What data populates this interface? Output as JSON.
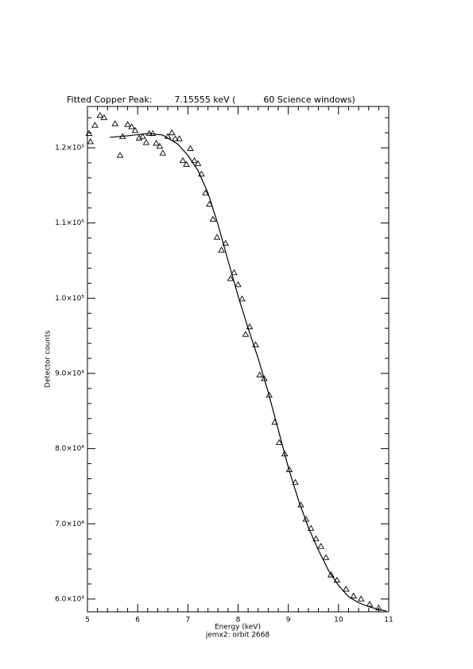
{
  "chart_data": {
    "type": "scatter",
    "title": "Fitted Copper Peak:        7.15555 keV (          60 Science windows)",
    "x_label": "Energy (keV)",
    "subtitle": "jemx2: orbit 2668",
    "y_label": "Detector counts",
    "xlim": [
      5,
      11
    ],
    "xticks": [
      5,
      6,
      7,
      8,
      9,
      10,
      11
    ],
    "ylim": [
      58300,
      125500
    ],
    "yticks": [
      {
        "value": 60000,
        "label": "6.0×10⁴"
      },
      {
        "value": 70000,
        "label": "7.0×10⁴"
      },
      {
        "value": 80000,
        "label": "8.0×10⁴"
      },
      {
        "value": 90000,
        "label": "9.0×10⁴"
      },
      {
        "value": 100000,
        "label": "1.0×10⁵"
      },
      {
        "value": 110000,
        "label": "1.1×10⁵"
      },
      {
        "value": 120000,
        "label": "1.2×10⁵"
      }
    ],
    "series": [
      {
        "mode": "markers",
        "color": "#000000",
        "x": [
          5.03,
          5.06,
          5.15,
          5.25,
          5.33,
          5.55,
          5.65,
          5.7,
          5.8,
          5.88,
          5.95,
          6.03,
          6.1,
          6.17,
          6.23,
          6.3,
          6.37,
          6.44,
          6.5,
          6.6,
          6.68,
          6.75,
          6.83,
          6.9,
          6.97,
          7.05,
          7.13,
          7.2,
          7.27,
          7.35,
          7.43,
          7.5,
          7.58,
          7.67,
          7.75,
          7.85,
          7.92,
          8.0,
          8.08,
          8.15,
          8.23,
          8.35,
          8.43,
          8.52,
          8.62,
          8.73,
          8.82,
          8.93,
          9.02,
          9.14,
          9.25,
          9.35,
          9.45,
          9.55,
          9.65,
          9.75,
          9.85,
          9.97,
          10.15,
          10.3,
          10.45,
          10.62,
          10.8
        ],
        "values": [
          121900,
          120800,
          123000,
          124300,
          124000,
          123200,
          119000,
          121500,
          123100,
          122800,
          122300,
          121300,
          121500,
          120700,
          121900,
          121900,
          120600,
          120200,
          119300,
          121500,
          122000,
          121200,
          121200,
          118300,
          117800,
          119900,
          118300,
          117900,
          116500,
          114000,
          112500,
          110500,
          108100,
          106400,
          107300,
          102600,
          103400,
          101800,
          99900,
          95200,
          96200,
          93800,
          89800,
          89300,
          87100,
          83500,
          80800,
          79300,
          77200,
          75500,
          72500,
          70600,
          69400,
          68000,
          67000,
          65500,
          63200,
          62500,
          61300,
          60400,
          60000,
          59300,
          58800
        ]
      },
      {
        "mode": "line",
        "color": "#000000",
        "x": [
          5.45,
          5.8,
          6.2,
          6.5,
          6.8,
          7.0,
          7.2,
          7.4,
          7.6,
          7.8,
          8.0,
          8.2,
          8.4,
          8.6,
          8.8,
          9.0,
          9.2,
          9.4,
          9.6,
          9.8,
          10.0,
          10.2,
          10.4,
          10.6,
          10.8,
          10.95
        ],
        "values": [
          121400,
          121600,
          121900,
          121700,
          120500,
          119000,
          117000,
          114000,
          109800,
          105000,
          100300,
          96000,
          92000,
          87500,
          82500,
          77500,
          73200,
          69500,
          66500,
          63800,
          61800,
          60300,
          59500,
          59000,
          58600,
          58400
        ]
      }
    ]
  }
}
